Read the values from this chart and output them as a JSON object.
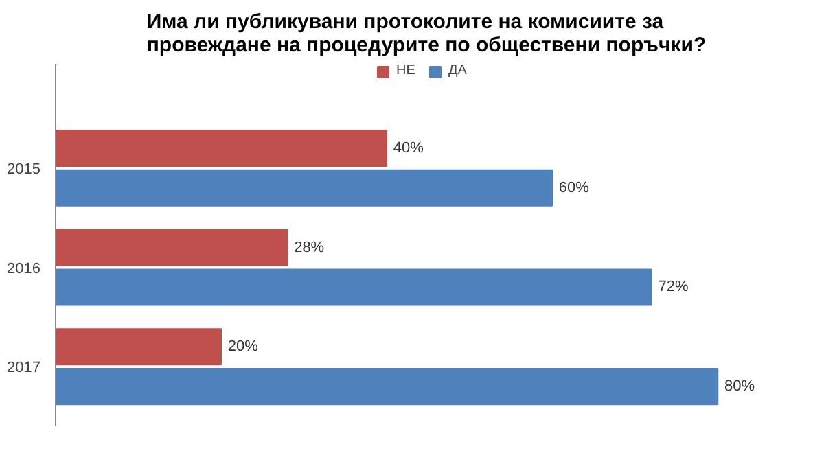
{
  "chart_data": {
    "type": "bar",
    "orientation": "horizontal",
    "title": "Има ли публикувани протоколите на комисиите за провеждане на процедурите по обществени поръчки?",
    "categories": [
      "2015",
      "2016",
      "2017"
    ],
    "series": [
      {
        "name": "НЕ",
        "color": "#c0504d",
        "values": [
          40,
          28,
          20
        ],
        "value_labels": [
          "40%",
          "28%",
          "20%"
        ]
      },
      {
        "name": "ДА",
        "color": "#4f81bd",
        "values": [
          60,
          72,
          80
        ],
        "value_labels": [
          "60%",
          "72%",
          "80%"
        ]
      }
    ],
    "legend": "top",
    "grid": false,
    "tick_labels": "y"
  }
}
